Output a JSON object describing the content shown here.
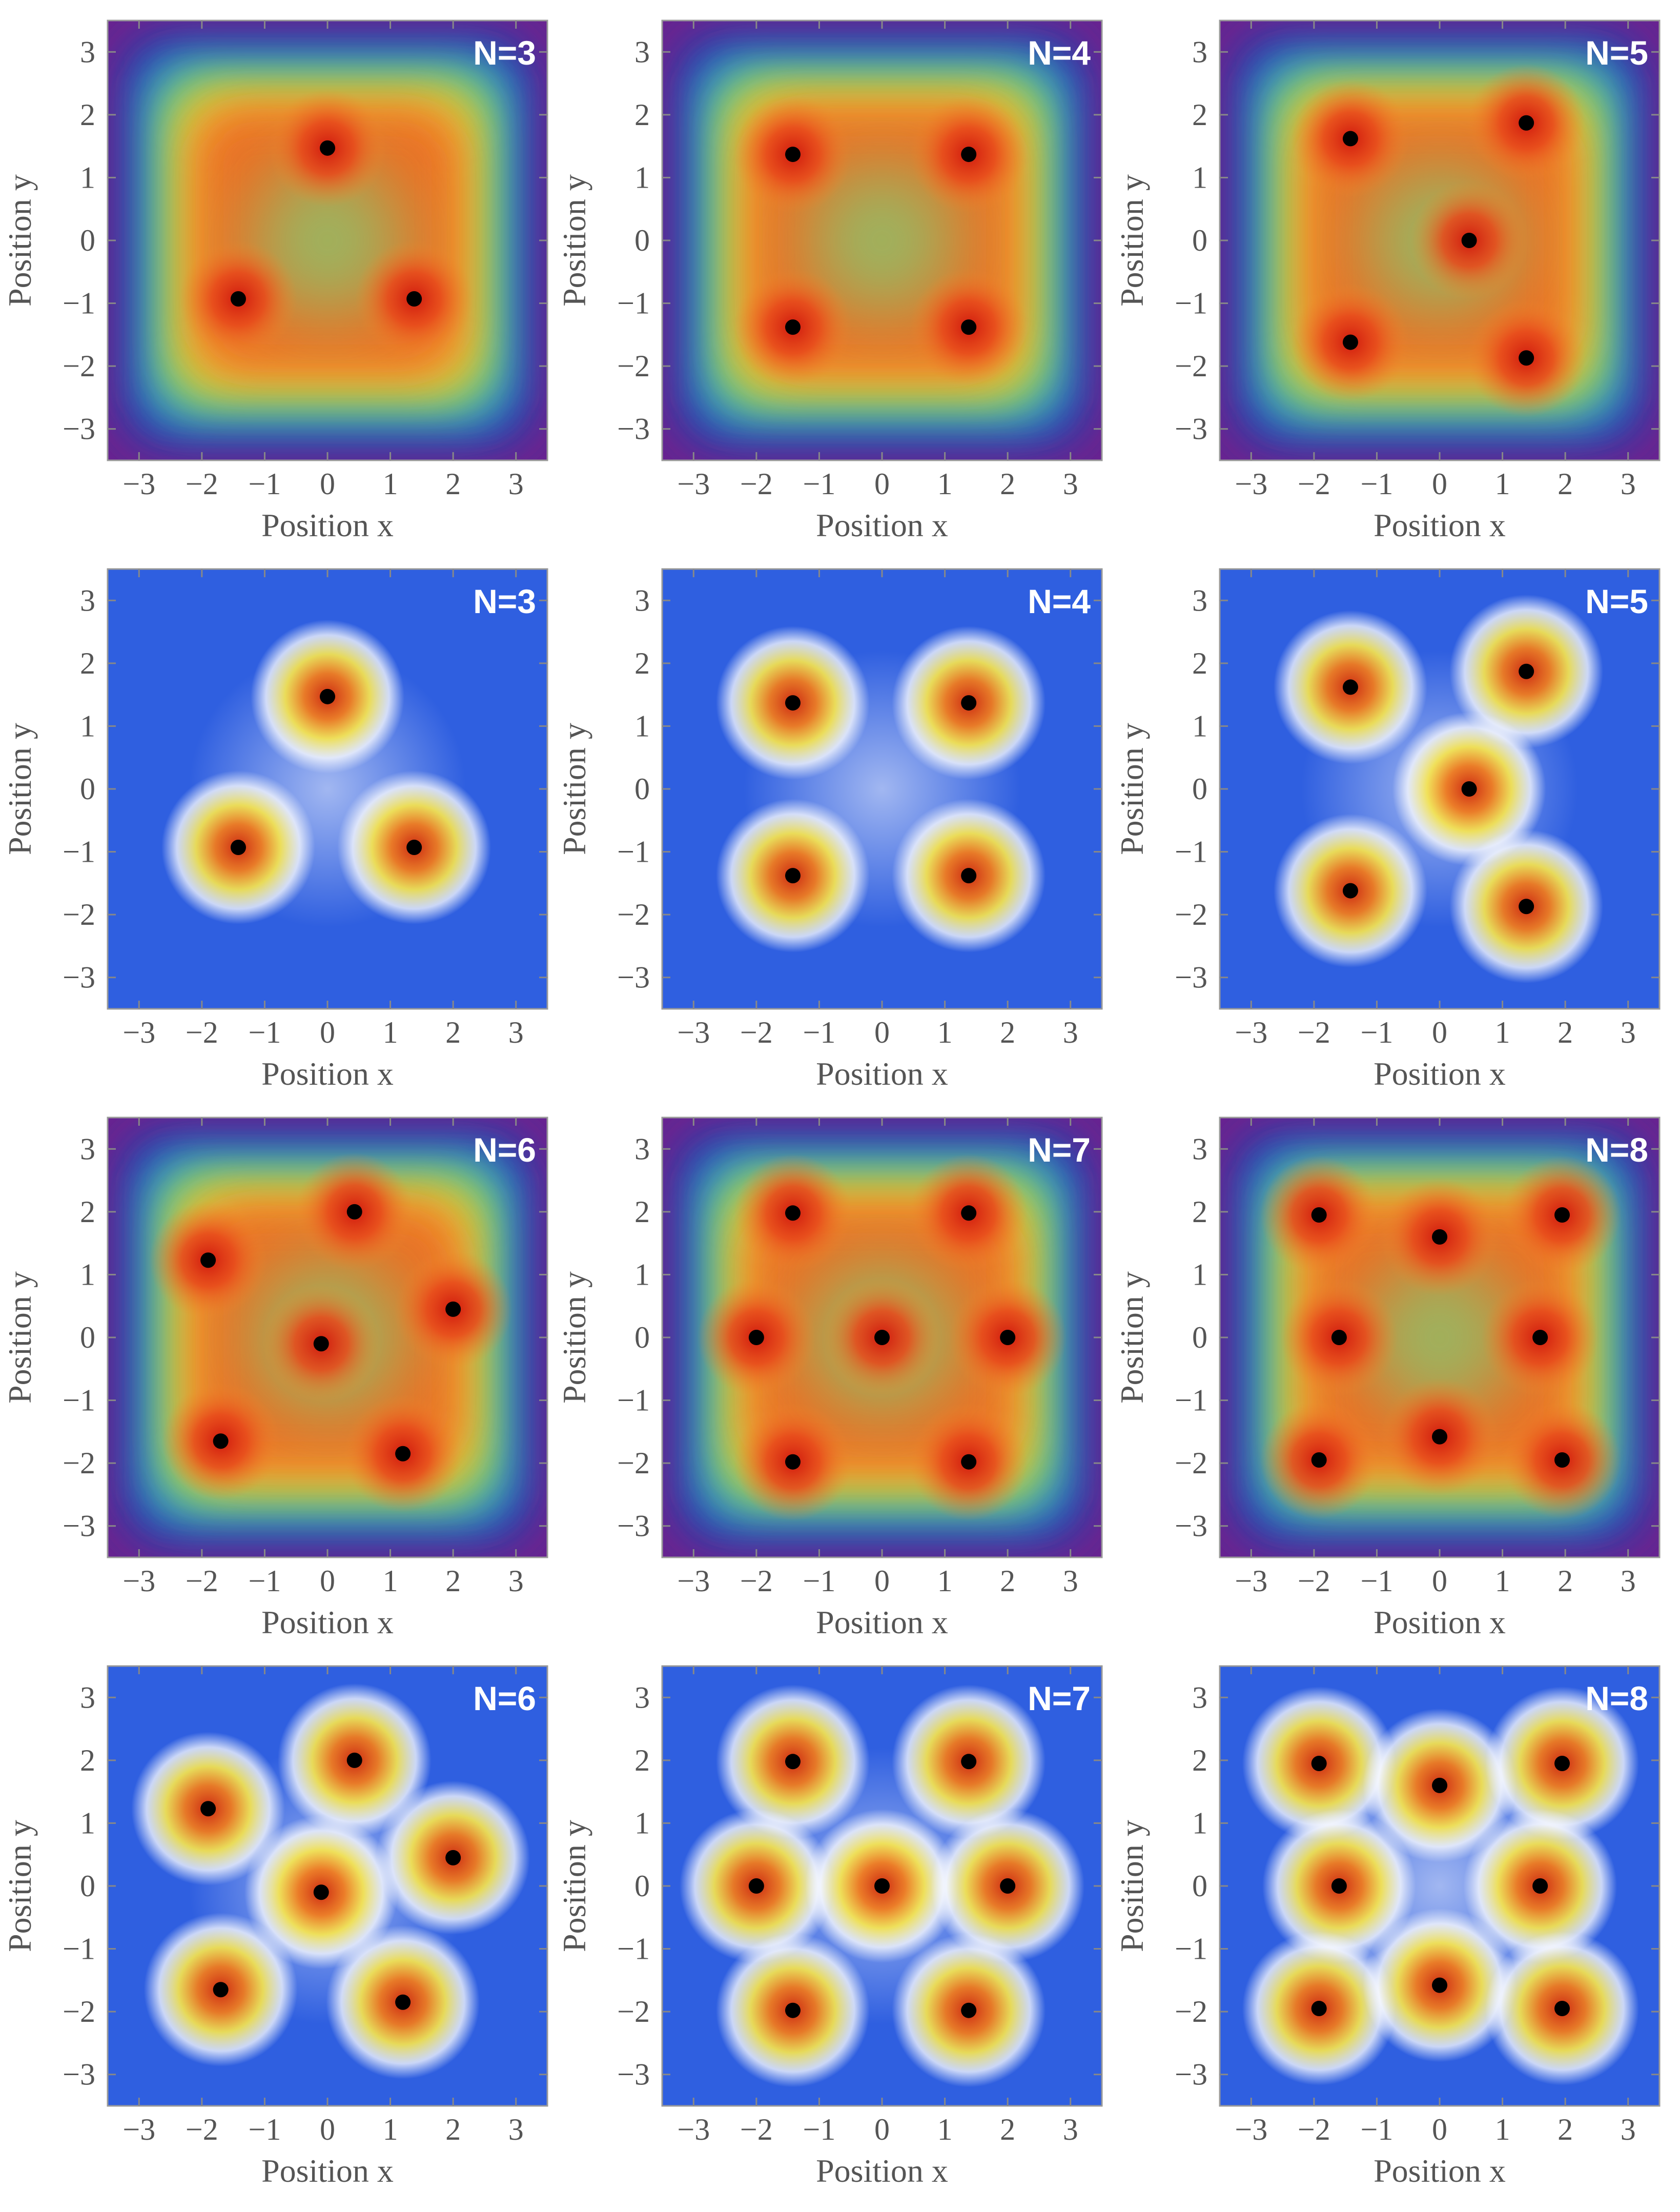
{
  "axis": {
    "xlabel": "Position x",
    "ylabel": "Position y",
    "xlim": [
      -3.5,
      3.5
    ],
    "ylim": [
      -3.5,
      3.5
    ],
    "ticks": [
      -3,
      -2,
      -1,
      0,
      1,
      2,
      3
    ],
    "tick_labels": [
      "−3",
      "−2",
      "−1",
      "0",
      "1",
      "2",
      "3"
    ]
  },
  "colors": {
    "rainbow_high": "#dd2211",
    "rainbow_mid": "#8ec06a",
    "rainbow_low": "#6a2490",
    "density_background": "#2f5fe0",
    "density_peak": "#d8381a",
    "points": "#000000",
    "labels": "#ffffff",
    "axis_text": "#555555"
  },
  "chart_data": [
    {
      "type": "heatmap",
      "colormap": "rainbow",
      "label": "N=3",
      "points": [
        [
          0,
          1.47
        ],
        [
          -1.42,
          -0.93
        ],
        [
          1.38,
          -0.93
        ]
      ]
    },
    {
      "type": "heatmap",
      "colormap": "rainbow",
      "label": "N=4",
      "points": [
        [
          -1.42,
          1.37
        ],
        [
          1.38,
          1.37
        ],
        [
          -1.42,
          -1.38
        ],
        [
          1.38,
          -1.38
        ]
      ]
    },
    {
      "type": "heatmap",
      "colormap": "rainbow",
      "label": "N=5",
      "points": [
        [
          -1.42,
          1.62
        ],
        [
          1.38,
          1.87
        ],
        [
          0.47,
          0
        ],
        [
          -1.42,
          -1.62
        ],
        [
          1.38,
          -1.87
        ]
      ]
    },
    {
      "type": "heatmap",
      "colormap": "density",
      "label": "N=3",
      "points": [
        [
          0,
          1.47
        ],
        [
          -1.42,
          -0.93
        ],
        [
          1.38,
          -0.93
        ]
      ]
    },
    {
      "type": "heatmap",
      "colormap": "density",
      "label": "N=4",
      "points": [
        [
          -1.42,
          1.37
        ],
        [
          1.38,
          1.37
        ],
        [
          -1.42,
          -1.38
        ],
        [
          1.38,
          -1.38
        ]
      ]
    },
    {
      "type": "heatmap",
      "colormap": "density",
      "label": "N=5",
      "points": [
        [
          -1.42,
          1.62
        ],
        [
          1.38,
          1.87
        ],
        [
          0.47,
          0
        ],
        [
          -1.42,
          -1.62
        ],
        [
          1.38,
          -1.87
        ]
      ]
    },
    {
      "type": "heatmap",
      "colormap": "rainbow",
      "label": "N=6",
      "points": [
        [
          0.43,
          2.0
        ],
        [
          -1.9,
          1.23
        ],
        [
          2.0,
          0.45
        ],
        [
          -0.1,
          -0.1
        ],
        [
          -1.7,
          -1.65
        ],
        [
          1.2,
          -1.85
        ]
      ]
    },
    {
      "type": "heatmap",
      "colormap": "rainbow",
      "label": "N=7",
      "points": [
        [
          -1.42,
          1.98
        ],
        [
          1.38,
          1.98
        ],
        [
          -2.0,
          0
        ],
        [
          0,
          0
        ],
        [
          2.0,
          0
        ],
        [
          -1.42,
          -1.98
        ],
        [
          1.38,
          -1.98
        ]
      ]
    },
    {
      "type": "heatmap",
      "colormap": "rainbow",
      "label": "N=8",
      "points": [
        [
          -1.92,
          1.95
        ],
        [
          0,
          1.6
        ],
        [
          1.95,
          1.95
        ],
        [
          -1.6,
          0
        ],
        [
          1.6,
          0
        ],
        [
          -1.92,
          -1.95
        ],
        [
          0,
          -1.58
        ],
        [
          1.95,
          -1.95
        ]
      ]
    },
    {
      "type": "heatmap",
      "colormap": "density",
      "label": "N=6",
      "points": [
        [
          0.43,
          2.0
        ],
        [
          -1.9,
          1.23
        ],
        [
          2.0,
          0.45
        ],
        [
          -0.1,
          -0.1
        ],
        [
          -1.7,
          -1.65
        ],
        [
          1.2,
          -1.85
        ]
      ]
    },
    {
      "type": "heatmap",
      "colormap": "density",
      "label": "N=7",
      "points": [
        [
          -1.42,
          1.98
        ],
        [
          1.38,
          1.98
        ],
        [
          -2.0,
          0
        ],
        [
          0,
          0
        ],
        [
          2.0,
          0
        ],
        [
          -1.42,
          -1.98
        ],
        [
          1.38,
          -1.98
        ]
      ]
    },
    {
      "type": "heatmap",
      "colormap": "density",
      "label": "N=8",
      "points": [
        [
          -1.92,
          1.95
        ],
        [
          0,
          1.6
        ],
        [
          1.95,
          1.95
        ],
        [
          -1.6,
          0
        ],
        [
          1.6,
          0
        ],
        [
          -1.92,
          -1.95
        ],
        [
          0,
          -1.58
        ],
        [
          1.95,
          -1.95
        ]
      ]
    }
  ]
}
